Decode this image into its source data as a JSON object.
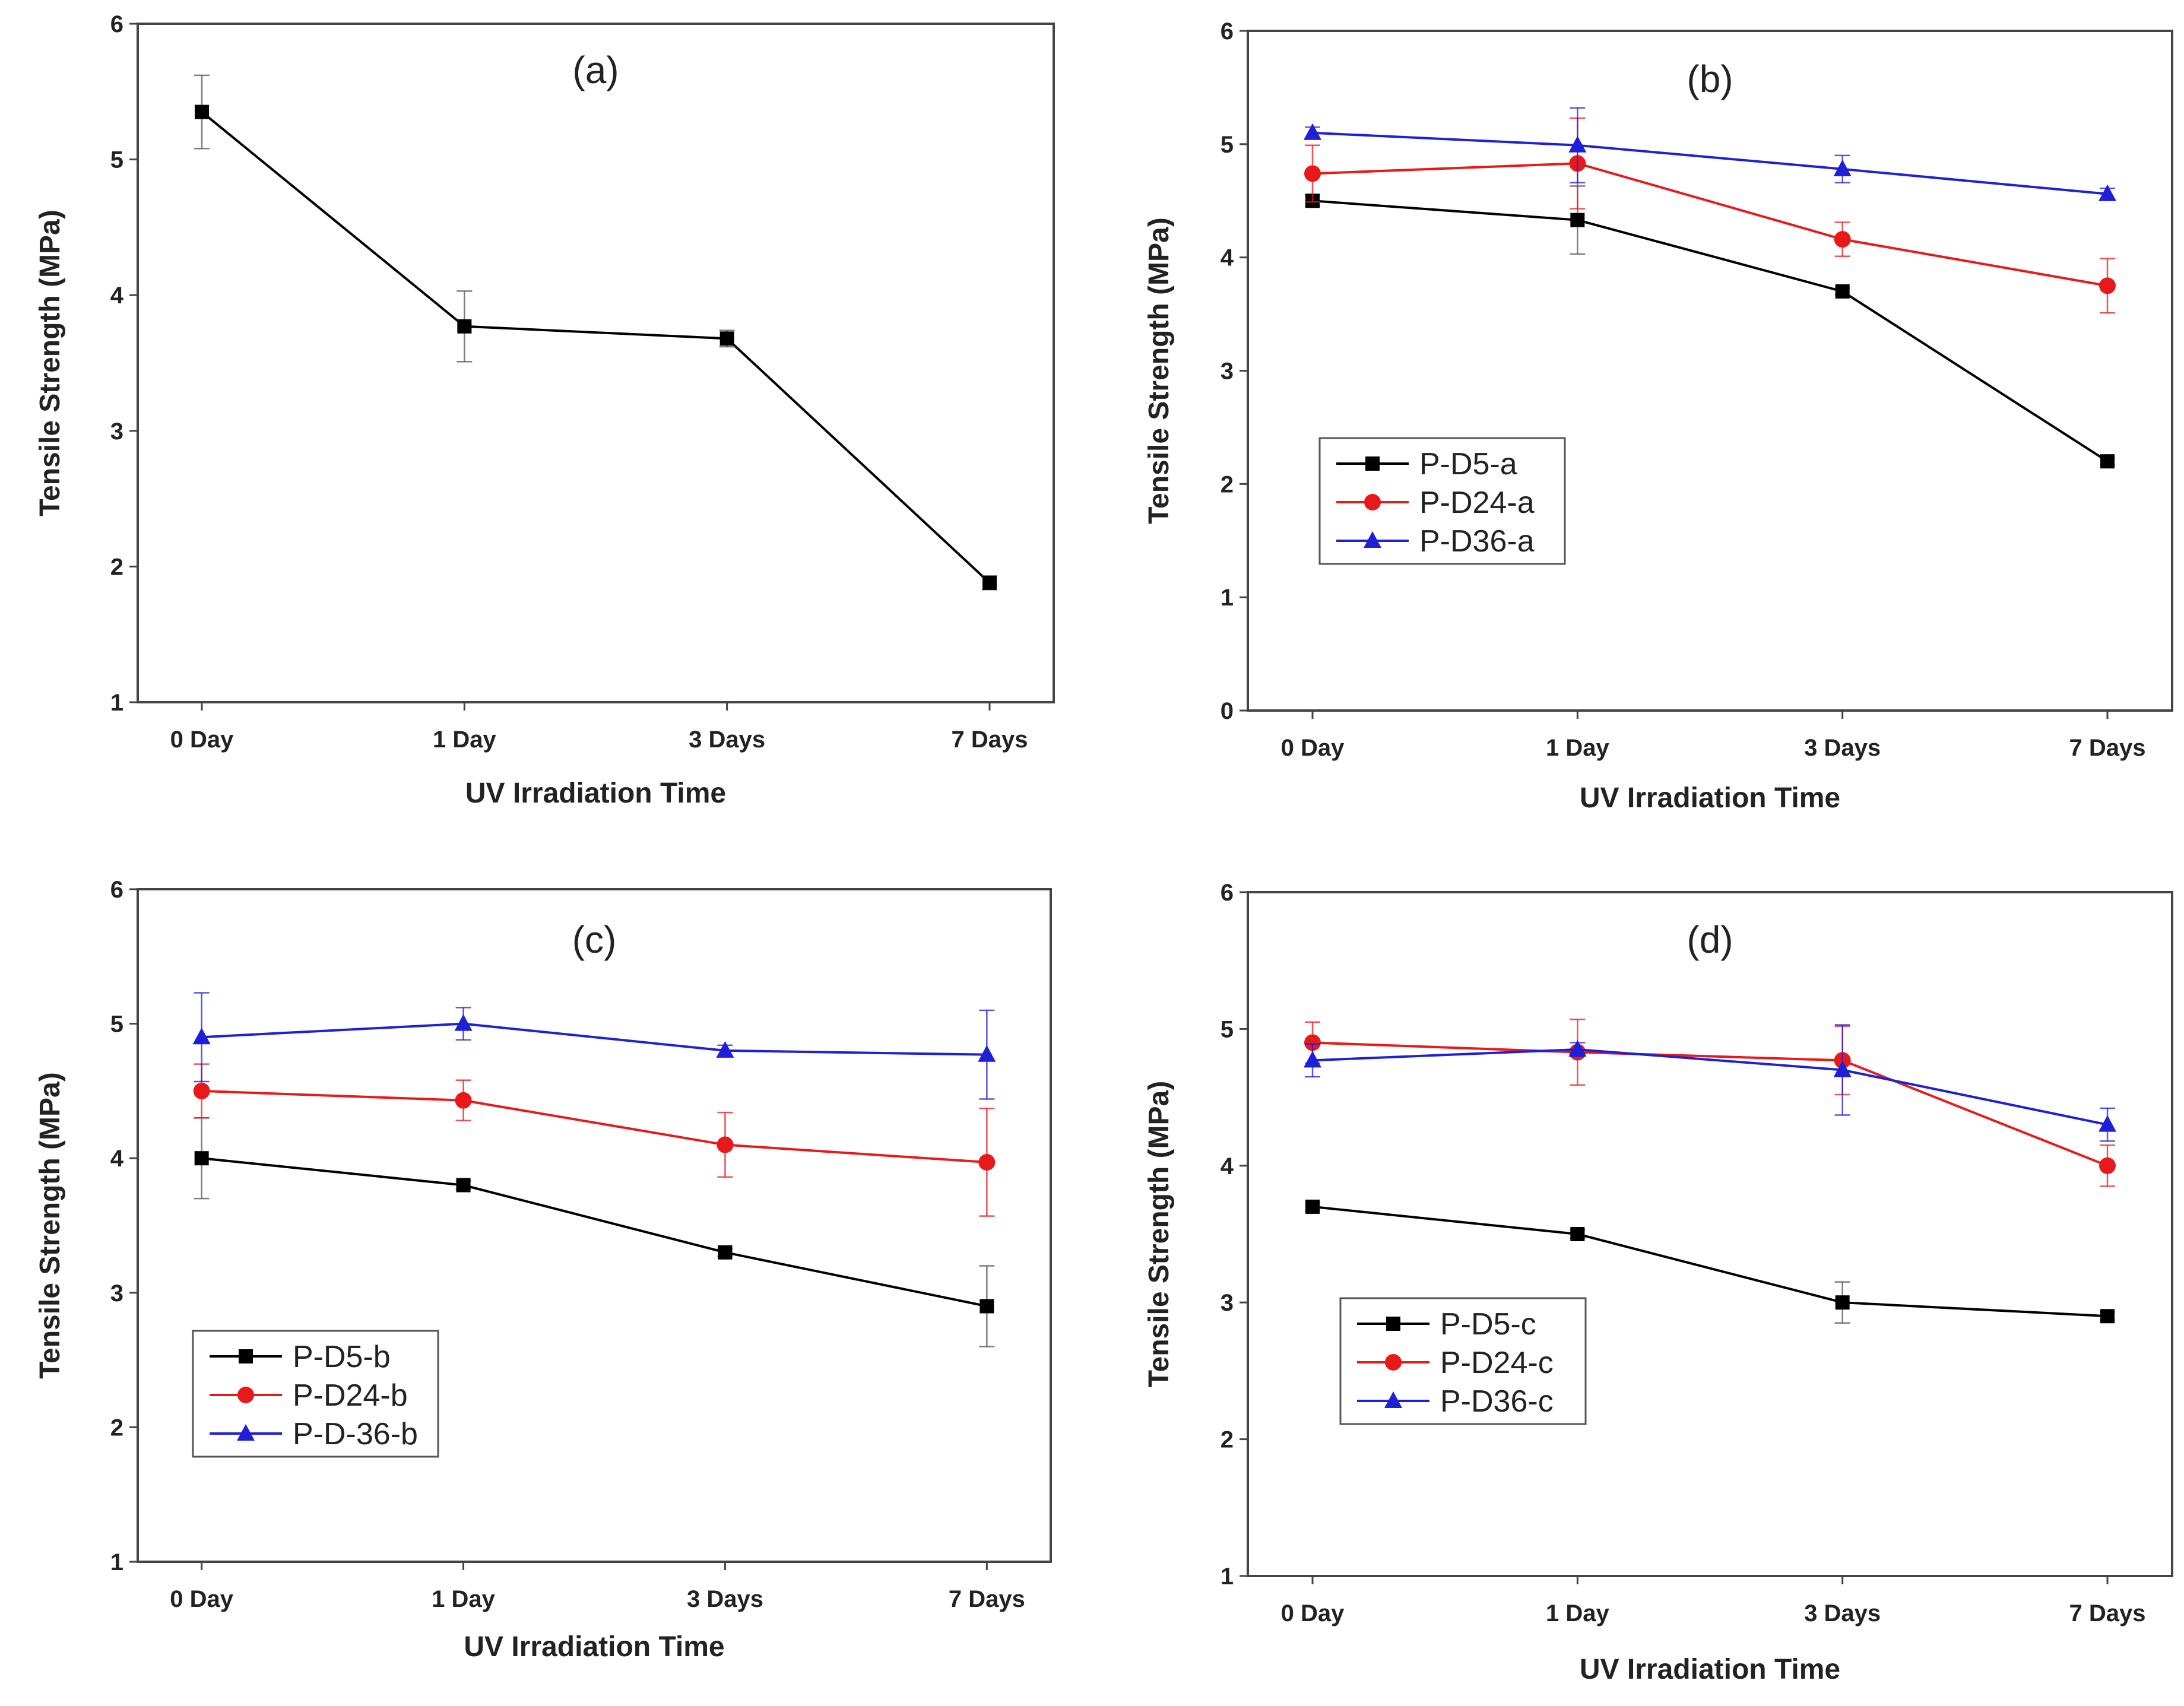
{
  "chart_data": [
    {
      "type": "line",
      "panel_label": "(a)",
      "xlabel": "UV Irradiation Time",
      "ylabel": "Tensile Strength (MPa)",
      "categories": [
        "0 Day",
        "1 Day",
        "3 Days",
        "7 Days"
      ],
      "ylim": [
        1,
        6
      ],
      "yticks": [
        "1",
        "2",
        "3",
        "4",
        "5",
        "6"
      ],
      "legend": null,
      "series": [
        {
          "name": "",
          "color": "#000000",
          "marker": "square",
          "values": [
            5.35,
            3.77,
            3.68,
            1.88
          ],
          "errors": [
            0.27,
            0.26,
            0.06,
            0.05
          ]
        }
      ]
    },
    {
      "type": "line",
      "panel_label": "(b)",
      "xlabel": "UV Irradiation Time",
      "ylabel": "Tensile Strength (MPa)",
      "categories": [
        "0 Day",
        "1 Day",
        "3 Days",
        "7 Days"
      ],
      "ylim": [
        0,
        6
      ],
      "yticks": [
        "0",
        "1",
        "2",
        "3",
        "4",
        "5",
        "6"
      ],
      "legend": "lower-left",
      "series": [
        {
          "name": "P-D5-a",
          "color": "#000000",
          "marker": "square",
          "values": [
            4.5,
            4.33,
            3.7,
            2.2
          ],
          "errors": [
            0.05,
            0.3,
            0.03,
            0.03
          ]
        },
        {
          "name": "P-D24-a",
          "color": "#e8191b",
          "marker": "circle",
          "values": [
            4.74,
            4.83,
            4.16,
            3.75
          ],
          "errors": [
            0.25,
            0.4,
            0.15,
            0.24
          ]
        },
        {
          "name": "P-D36-a",
          "color": "#1f1fd6",
          "marker": "triangle",
          "values": [
            5.1,
            4.99,
            4.78,
            4.56
          ],
          "errors": [
            0.05,
            0.33,
            0.12,
            0.05
          ]
        }
      ]
    },
    {
      "type": "line",
      "panel_label": "(c)",
      "xlabel": "UV Irradiation Time",
      "ylabel": "Tensile Strength (MPa)",
      "categories": [
        "0 Day",
        "1 Day",
        "3 Days",
        "7 Days"
      ],
      "ylim": [
        1,
        6
      ],
      "yticks": [
        "1",
        "2",
        "3",
        "4",
        "5",
        "6"
      ],
      "legend": "lower-left",
      "series": [
        {
          "name": "P-D5-b",
          "color": "#000000",
          "marker": "square",
          "values": [
            4.0,
            3.8,
            3.3,
            2.9
          ],
          "errors": [
            0.3,
            0.03,
            0.03,
            0.3
          ]
        },
        {
          "name": "P-D24-b",
          "color": "#e8191b",
          "marker": "circle",
          "values": [
            4.5,
            4.43,
            4.1,
            3.97
          ],
          "errors": [
            0.2,
            0.15,
            0.24,
            0.4
          ]
        },
        {
          "name": "P-D-36-b",
          "color": "#1f1fd6",
          "marker": "triangle",
          "values": [
            4.9,
            5.0,
            4.8,
            4.77
          ],
          "errors": [
            0.33,
            0.12,
            0.04,
            0.33
          ]
        }
      ]
    },
    {
      "type": "line",
      "panel_label": "(d)",
      "xlabel": "UV Irradiation Time",
      "ylabel": "Tensile Strength (MPa)",
      "categories": [
        "0 Day",
        "1 Day",
        "3 Days",
        "7 Days"
      ],
      "ylim": [
        1,
        6
      ],
      "yticks": [
        "1",
        "2",
        "3",
        "4",
        "5",
        "6"
      ],
      "legend": "lower-left",
      "series": [
        {
          "name": "P-D5-c",
          "color": "#000000",
          "marker": "square",
          "values": [
            3.7,
            3.5,
            3.0,
            2.9
          ],
          "errors": [
            0.03,
            0.03,
            0.15,
            0.03
          ]
        },
        {
          "name": "P-D24-c",
          "color": "#e8191b",
          "marker": "circle",
          "values": [
            4.9,
            4.83,
            4.77,
            4.0
          ],
          "errors": [
            0.15,
            0.24,
            0.25,
            0.15
          ]
        },
        {
          "name": "P-D36-c",
          "color": "#1f1fd6",
          "marker": "triangle",
          "values": [
            4.77,
            4.85,
            4.7,
            4.3
          ],
          "errors": [
            0.12,
            0.05,
            0.33,
            0.12
          ]
        }
      ]
    }
  ]
}
